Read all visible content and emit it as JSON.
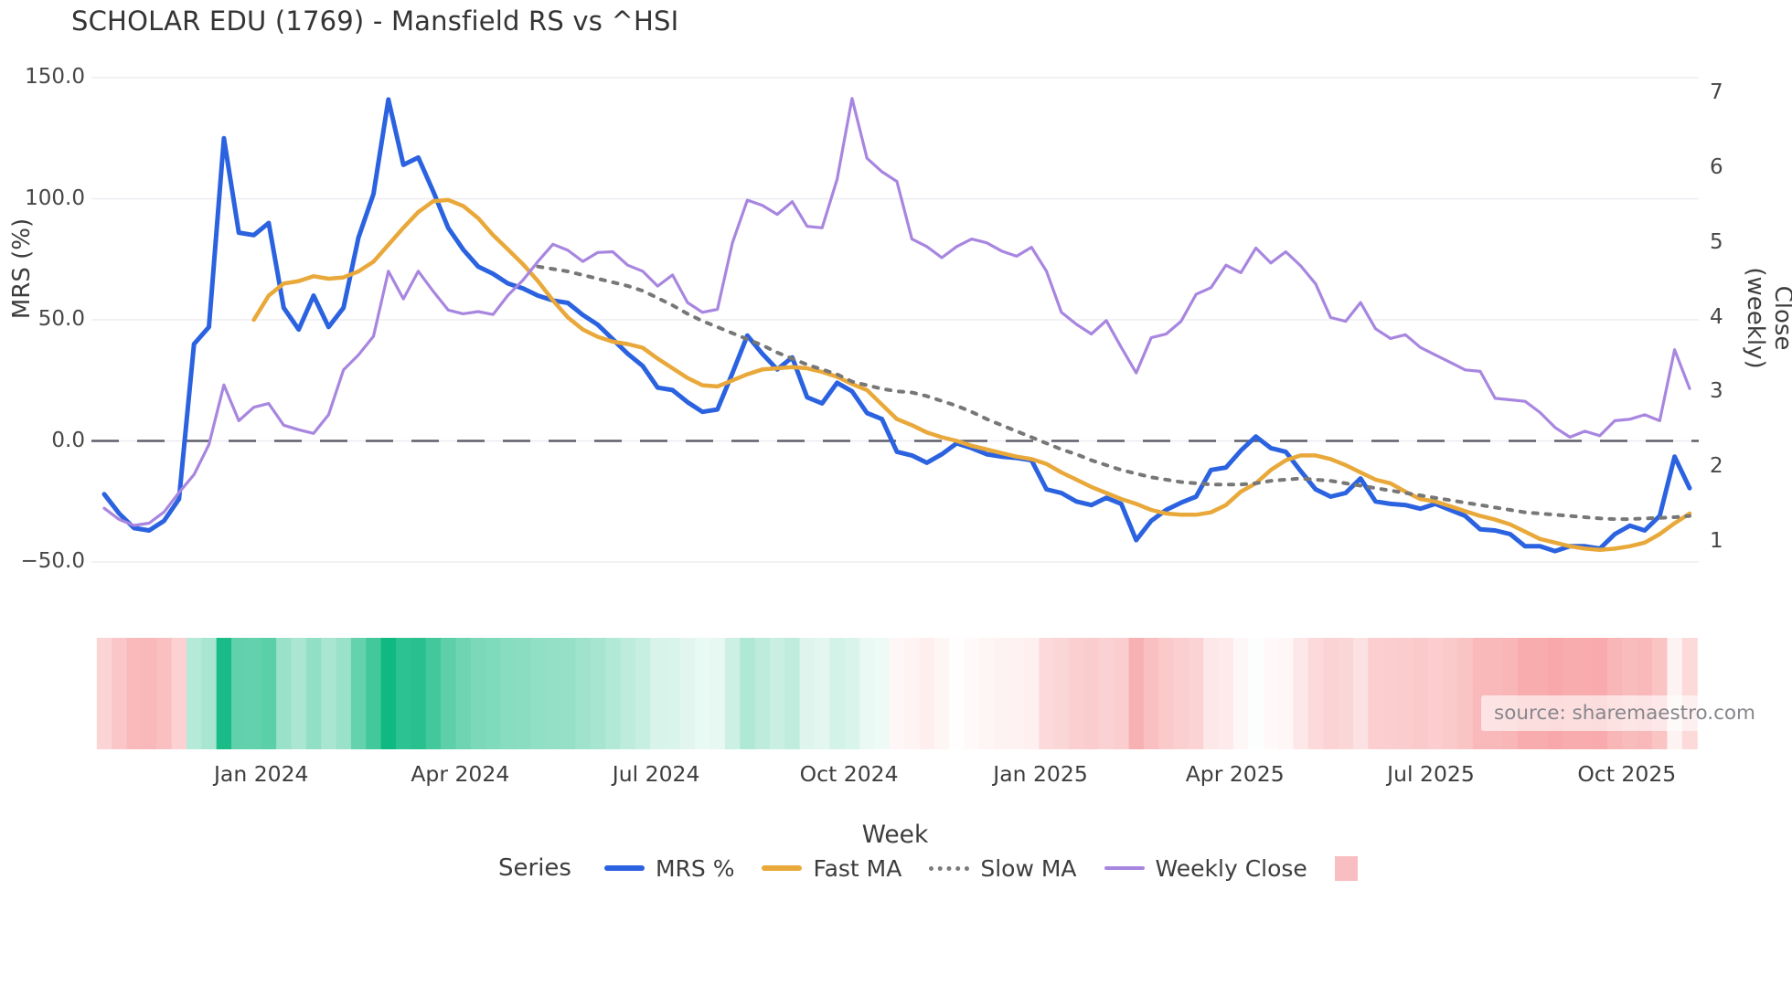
{
  "chart_data": {
    "type": "line",
    "title": "SCHOLAR EDU (1769) - Mansfield RS vs ^HSI",
    "xlabel": "Week",
    "ylabel_left": "MRS (%)",
    "ylabel_right": "Close (weekly)",
    "x_axis": {
      "n_weeks": 107,
      "tick_weeks": [
        10.5,
        23.8,
        36.9,
        49.8,
        62.6,
        75.6,
        88.7,
        101.8
      ],
      "tick_labels": [
        "Jan 2024",
        "Apr 2024",
        "Jul 2024",
        "Oct 2024",
        "Jan 2025",
        "Apr 2025",
        "Jul 2025",
        "Oct 2025"
      ]
    },
    "y_left": {
      "min": -50,
      "max": 150,
      "ticks": [
        150.0,
        100.0,
        50.0,
        0.0,
        -50.0
      ],
      "tick_labels": [
        "150.0",
        "100.0",
        "50.0",
        "0.0",
        "−50.0"
      ],
      "zero_line": true
    },
    "y_right": {
      "min": 1,
      "max": 7,
      "ticks": [
        7,
        6,
        5,
        4,
        3,
        2,
        1
      ]
    },
    "grid": "horizontal-only",
    "legend_position": "bottom",
    "legend_title": "Series",
    "series": [
      {
        "name": "MRS %",
        "axis": "left",
        "color": "#2b62e0",
        "style": "solid",
        "width": 5,
        "values": [
          -22,
          -30,
          -36,
          -37,
          -33,
          -24,
          40,
          47,
          125,
          86,
          85,
          90,
          55,
          46,
          60,
          47,
          55,
          84,
          102,
          141,
          114,
          117,
          103,
          88,
          79,
          72,
          69,
          65,
          63,
          60,
          58,
          57,
          52,
          48,
          42,
          36,
          31,
          22,
          21,
          16,
          12,
          13,
          28,
          43.5,
          36,
          29.5,
          34.5,
          18,
          15.5,
          24,
          20.5,
          11.5,
          9,
          -4.5,
          -6,
          -9,
          -5.5,
          -1,
          -3,
          -5.5,
          -6.5,
          -7,
          -8,
          -20,
          -21.5,
          -25,
          -26.5,
          -23.5,
          -26,
          -41,
          -33,
          -28.5,
          -25.5,
          -23,
          -12,
          -11,
          -4,
          1.8,
          -3,
          -4.5,
          -12.5,
          -20,
          -23,
          -21.5,
          -15.5,
          -25,
          -26,
          -26.5,
          -28,
          -26,
          -28.5,
          -31,
          -36.5,
          -37,
          -38.5,
          -43.5,
          -43.5,
          -45.5,
          -43.5,
          -43.5,
          -44.5,
          -38.5,
          -35,
          -37,
          -31,
          -6.5,
          -19.5
        ]
      },
      {
        "name": "Fast MA",
        "axis": "left",
        "color": "#e9a83a",
        "style": "solid",
        "width": 4.5,
        "values": [
          null,
          null,
          null,
          null,
          null,
          null,
          null,
          null,
          null,
          null,
          50,
          60,
          65,
          66,
          68,
          67,
          67.5,
          70,
          74,
          81,
          88,
          94.5,
          99,
          99.5,
          97,
          92,
          85,
          79,
          73,
          66,
          58,
          51,
          46,
          43,
          41,
          40,
          38.5,
          34,
          30,
          26,
          23,
          22.5,
          25,
          27.5,
          29.5,
          30,
          30.5,
          30,
          28.5,
          26.5,
          23.5,
          21,
          15,
          9,
          6.5,
          3.5,
          1.5,
          0,
          -2,
          -3.5,
          -5,
          -6.5,
          -7.5,
          -9.5,
          -13,
          -16,
          -19,
          -21.5,
          -24,
          -26,
          -28.5,
          -30,
          -30.5,
          -30.5,
          -29.5,
          -26.5,
          -21,
          -17.5,
          -12,
          -8,
          -6,
          -6,
          -7.5,
          -10,
          -13,
          -16,
          -17.5,
          -21,
          -24,
          -25,
          -27,
          -29,
          -31,
          -32.5,
          -34.5,
          -37.5,
          -40.5,
          -42,
          -43.5,
          -44.5,
          -45,
          -44.5,
          -43.5,
          -42,
          -38.5,
          -34,
          -30
        ]
      },
      {
        "name": "Slow MA",
        "axis": "left",
        "color": "#777777",
        "style": "dotted",
        "width": 4,
        "values": [
          null,
          null,
          null,
          null,
          null,
          null,
          null,
          null,
          null,
          null,
          null,
          null,
          null,
          null,
          null,
          null,
          null,
          null,
          null,
          null,
          null,
          null,
          null,
          null,
          null,
          null,
          null,
          null,
          null,
          72,
          71,
          70,
          68.5,
          67,
          65.5,
          64,
          62,
          59,
          56,
          52.5,
          49.5,
          47,
          44.5,
          42,
          39.5,
          36.5,
          34,
          31.5,
          29.5,
          27.5,
          24.5,
          23,
          21.5,
          20.5,
          20,
          18.5,
          16.5,
          14.5,
          12,
          9,
          6.5,
          4,
          1.5,
          -1,
          -3.5,
          -5.5,
          -8,
          -10,
          -12,
          -13.5,
          -15,
          -16,
          -17,
          -17.5,
          -18,
          -18,
          -18,
          -17.5,
          -16.5,
          -16,
          -15.5,
          -16,
          -16.5,
          -17.5,
          -18.5,
          -19.5,
          -20.5,
          -21.5,
          -22.5,
          -23.5,
          -24.5,
          -25.5,
          -26.5,
          -27.5,
          -28.5,
          -29.5,
          -30,
          -30.5,
          -31,
          -31.5,
          -32,
          -32.3,
          -32.3,
          -32,
          -31.8,
          -31.5,
          -31
        ]
      },
      {
        "name": "Weekly Close",
        "axis": "right",
        "color": "#a886e0",
        "style": "solid",
        "width": 3.2,
        "values": [
          1.45,
          1.3,
          1.22,
          1.25,
          1.4,
          1.66,
          1.9,
          2.3,
          3.1,
          2.62,
          2.8,
          2.85,
          2.56,
          2.5,
          2.45,
          2.7,
          3.3,
          3.5,
          3.75,
          4.62,
          4.25,
          4.62,
          4.35,
          4.1,
          4.05,
          4.08,
          4.04,
          4.3,
          4.5,
          4.75,
          4.98,
          4.9,
          4.75,
          4.87,
          4.88,
          4.7,
          4.62,
          4.42,
          4.57,
          4.2,
          4.07,
          4.11,
          5.0,
          5.57,
          5.5,
          5.38,
          5.55,
          5.22,
          5.2,
          5.85,
          6.93,
          6.13,
          5.95,
          5.82,
          5.05,
          4.95,
          4.8,
          4.95,
          5.05,
          5.0,
          4.89,
          4.82,
          4.94,
          4.62,
          4.07,
          3.91,
          3.78,
          3.96,
          3.6,
          3.26,
          3.73,
          3.78,
          3.95,
          4.31,
          4.4,
          4.7,
          4.6,
          4.93,
          4.73,
          4.88,
          4.69,
          4.45,
          4.0,
          3.95,
          4.2,
          3.85,
          3.72,
          3.77,
          3.6,
          3.5,
          3.4,
          3.3,
          3.28,
          2.92,
          2.9,
          2.88,
          2.73,
          2.53,
          2.4,
          2.48,
          2.42,
          2.62,
          2.64,
          2.7,
          2.62,
          3.57,
          3.05
        ]
      }
    ],
    "heatmap_band": {
      "encodes": "MRS % sign and magnitude per week",
      "positive_color": "#10b981",
      "negative_color": "#f69698",
      "positive_full_scale": 130,
      "negative_full_scale": 55,
      "legend_swatch_color": "#f9bec2"
    },
    "source": "source: sharemaestro.com",
    "colors": {
      "zero_dash": "#5f5f6b",
      "grid": "#ededf2",
      "text": "#3d3d3d"
    }
  }
}
